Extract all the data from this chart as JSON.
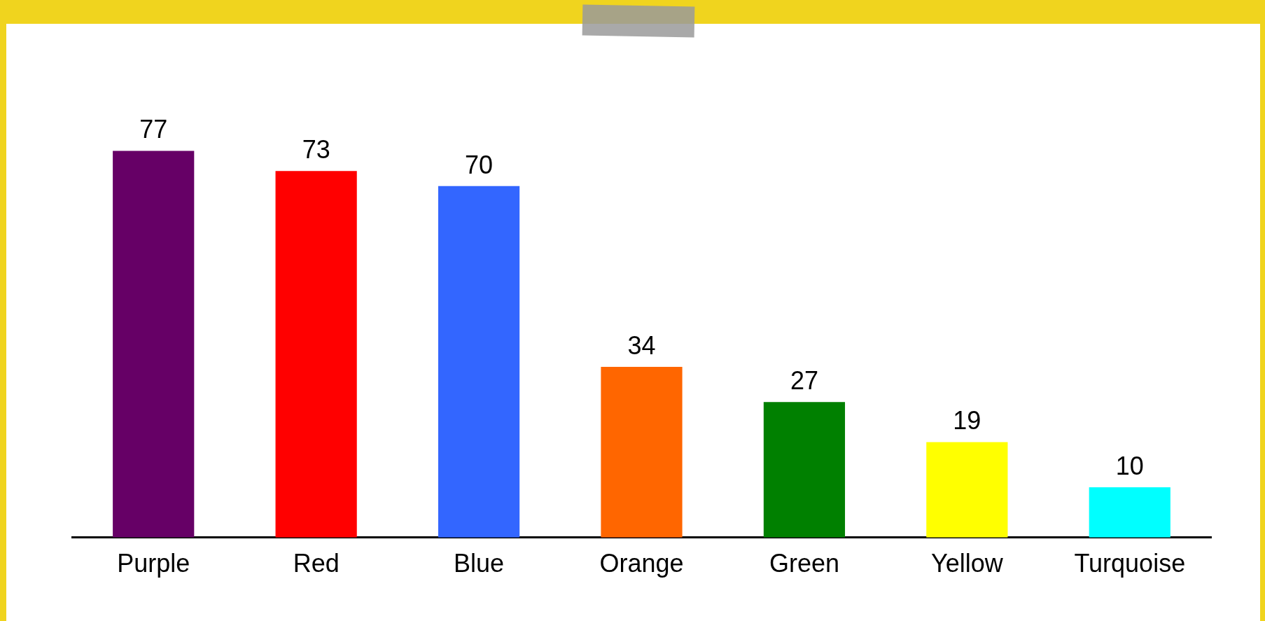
{
  "chart_data": {
    "type": "bar",
    "categories": [
      "Purple",
      "Red",
      "Blue",
      "Orange",
      "Green",
      "Yellow",
      "Turquoise"
    ],
    "values": [
      77,
      73,
      70,
      34,
      27,
      19,
      10
    ],
    "colors": [
      "#660066",
      "#ff0000",
      "#3366ff",
      "#ff6600",
      "#008000",
      "#ffff00",
      "#00ffff"
    ],
    "data_labels": true,
    "grid": false,
    "legend": false
  }
}
